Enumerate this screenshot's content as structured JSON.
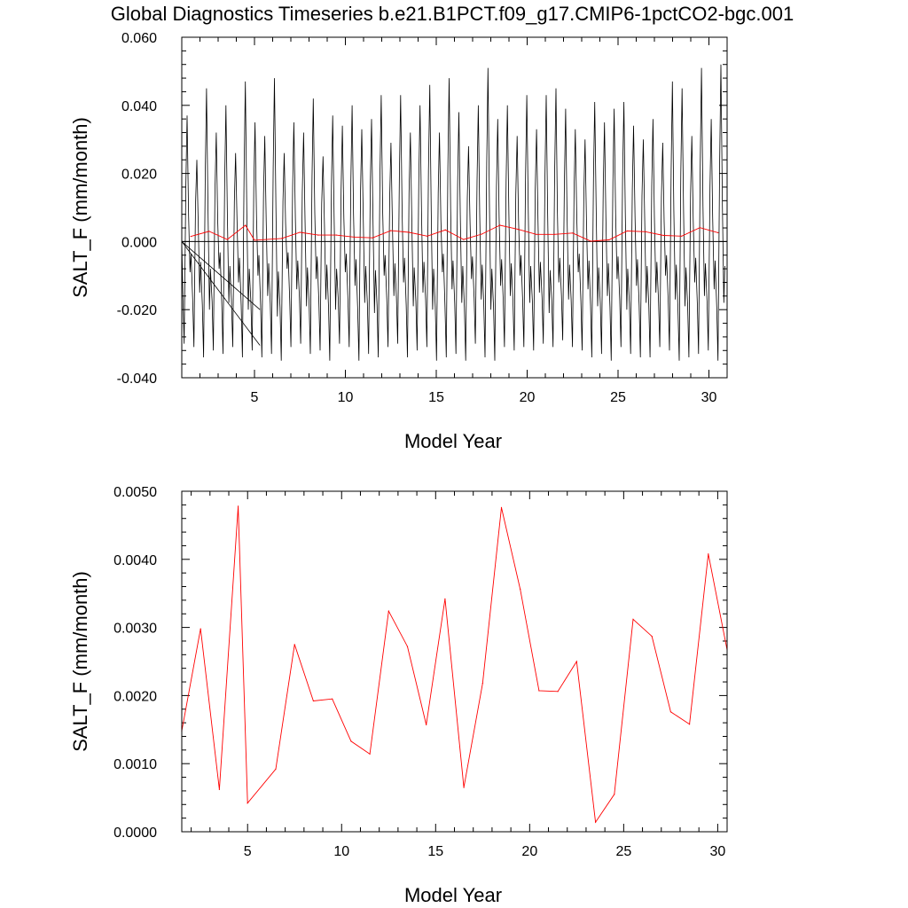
{
  "page_title": "Global Diagnostics Timeseries b.e21.B1PCT.f09_g17.CMIP6-1pctCO2-bgc.001",
  "chart_data": [
    {
      "type": "line",
      "panel": "top",
      "title": "Global Diagnostics Timeseries b.e21.B1PCT.f09_g17.CMIP6-1pctCO2-bgc.001",
      "xlabel": "Model Year",
      "ylabel": "SALT_F (mm/month)",
      "xlim": [
        1.0,
        31.0
      ],
      "ylim": [
        -0.04,
        0.06
      ],
      "xticks": [
        5,
        10,
        15,
        20,
        25,
        30
      ],
      "xtick_labels": [
        "5",
        "10",
        "15",
        "20",
        "25",
        "30"
      ],
      "yticks": [
        -0.04,
        -0.02,
        0.0,
        0.02,
        0.04,
        0.06
      ],
      "ytick_labels": [
        "-0.040",
        "-0.020",
        "0.000",
        "0.020",
        "0.040",
        "0.060"
      ],
      "grid": false,
      "legend": "none",
      "zero_line": 0.0,
      "series": [
        {
          "color": "#000000",
          "style": "monthly",
          "peaks": [
            0.037,
            0.024,
            0.045,
            0.032,
            0.04,
            0.026,
            0.047,
            0.035,
            0.031,
            0.048,
            0.026,
            0.035,
            0.032,
            0.042,
            0.025,
            0.037,
            0.034,
            0.04,
            0.033,
            0.036,
            0.043,
            0.029,
            0.043,
            0.032,
            0.04,
            0.046,
            0.032,
            0.048,
            0.038,
            0.028,
            0.04,
            0.051,
            0.036,
            0.04,
            0.031,
            0.043,
            0.033,
            0.043,
            0.045,
            0.039,
            0.033,
            0.03,
            0.041,
            0.035,
            0.039,
            0.041,
            0.034,
            0.03,
            0.036,
            0.029,
            0.047,
            0.045,
            0.031,
            0.051,
            0.036,
            0.052
          ],
          "troughs": [
            -0.03,
            -0.031,
            -0.034,
            -0.032,
            -0.033,
            -0.031,
            -0.034,
            -0.032,
            -0.034,
            -0.033,
            -0.035,
            -0.031,
            -0.03,
            -0.033,
            -0.032,
            -0.035,
            -0.03,
            -0.031,
            -0.035,
            -0.033,
            -0.034,
            -0.031,
            -0.03,
            -0.034,
            -0.032,
            -0.031,
            -0.035,
            -0.034,
            -0.033,
            -0.035,
            -0.03,
            -0.034,
            -0.035,
            -0.031,
            -0.032,
            -0.031,
            -0.032,
            -0.03,
            -0.031,
            -0.029,
            -0.031,
            -0.032,
            -0.034,
            -0.033,
            -0.035,
            -0.031,
            -0.033,
            -0.034,
            -0.034,
            -0.031,
            -0.032,
            -0.035,
            -0.034,
            -0.033,
            -0.032,
            -0.035
          ],
          "minor": [
            -0.009,
            -0.015,
            -0.02,
            -0.008,
            -0.018,
            -0.012,
            -0.02,
            -0.01,
            -0.016,
            -0.022,
            -0.008,
            -0.014,
            -0.019,
            -0.011,
            -0.017,
            -0.02,
            -0.009,
            -0.013,
            -0.018,
            -0.021,
            -0.01,
            -0.016,
            -0.012,
            -0.019,
            -0.015,
            -0.02,
            -0.009,
            -0.014,
            -0.018,
            -0.011,
            -0.017,
            -0.02,
            -0.013,
            -0.016,
            -0.01,
            -0.018,
            -0.015,
            -0.021,
            -0.012,
            -0.017,
            -0.009,
            -0.014,
            -0.019,
            -0.016,
            -0.011,
            -0.02,
            -0.013,
            -0.018,
            -0.015,
            -0.01,
            -0.017,
            -0.019,
            -0.012,
            -0.016,
            -0.014,
            -0.018
          ]
        },
        {
          "color": "#ff0000",
          "x": [
            1.5,
            2.5,
            3.5,
            4.5,
            5.0,
            6.5,
            7.5,
            8.5,
            9.5,
            10.5,
            11.5,
            12.5,
            13.5,
            14.5,
            15.5,
            16.5,
            17.5,
            18.5,
            19.5,
            20.5,
            21.5,
            22.5,
            23.5,
            24.5,
            25.5,
            26.5,
            27.5,
            28.5,
            29.5,
            30.5
          ],
          "y": [
            0.0015,
            0.003,
            0.0006,
            0.0048,
            0.0004,
            0.0009,
            0.0027,
            0.0019,
            0.0019,
            0.0013,
            0.0011,
            0.0032,
            0.0027,
            0.0016,
            0.0034,
            0.0006,
            0.0022,
            0.0048,
            0.0036,
            0.0021,
            0.0021,
            0.0025,
            0.0001,
            0.0005,
            0.0031,
            0.0029,
            0.0018,
            0.0016,
            0.0041,
            0.0026
          ]
        }
      ]
    },
    {
      "type": "line",
      "panel": "bottom",
      "xlabel": "Model Year",
      "ylabel": "SALT_F (mm/month)",
      "xlim": [
        1.5,
        30.5
      ],
      "ylim": [
        0.0,
        0.005
      ],
      "xticks": [
        5,
        10,
        15,
        20,
        25,
        30
      ],
      "xtick_labels": [
        "5",
        "10",
        "15",
        "20",
        "25",
        "30"
      ],
      "yticks": [
        0.0,
        0.001,
        0.002,
        0.003,
        0.004,
        0.005
      ],
      "ytick_labels": [
        "0.0000",
        "0.0010",
        "0.0020",
        "0.0030",
        "0.0040",
        "0.0050"
      ],
      "grid": false,
      "legend": "none",
      "series": [
        {
          "color": "#ff0000",
          "x": [
            1.5,
            2.5,
            3.5,
            4.5,
            5.0,
            6.5,
            7.5,
            8.5,
            9.5,
            10.5,
            11.5,
            12.5,
            13.5,
            14.5,
            15.5,
            16.5,
            17.5,
            18.5,
            19.5,
            20.5,
            21.5,
            22.5,
            23.5,
            24.5,
            25.5,
            26.5,
            27.5,
            28.5,
            29.5,
            30.5
          ],
          "y": [
            0.00148,
            0.00298,
            0.00062,
            0.00478,
            0.00042,
            0.00092,
            0.00275,
            0.00192,
            0.00195,
            0.00133,
            0.00114,
            0.00324,
            0.00272,
            0.00157,
            0.00342,
            0.00065,
            0.00218,
            0.00476,
            0.00356,
            0.00207,
            0.00206,
            0.0025,
            0.00014,
            0.00055,
            0.00312,
            0.00287,
            0.00176,
            0.00158,
            0.00408,
            0.00267
          ]
        }
      ]
    }
  ]
}
